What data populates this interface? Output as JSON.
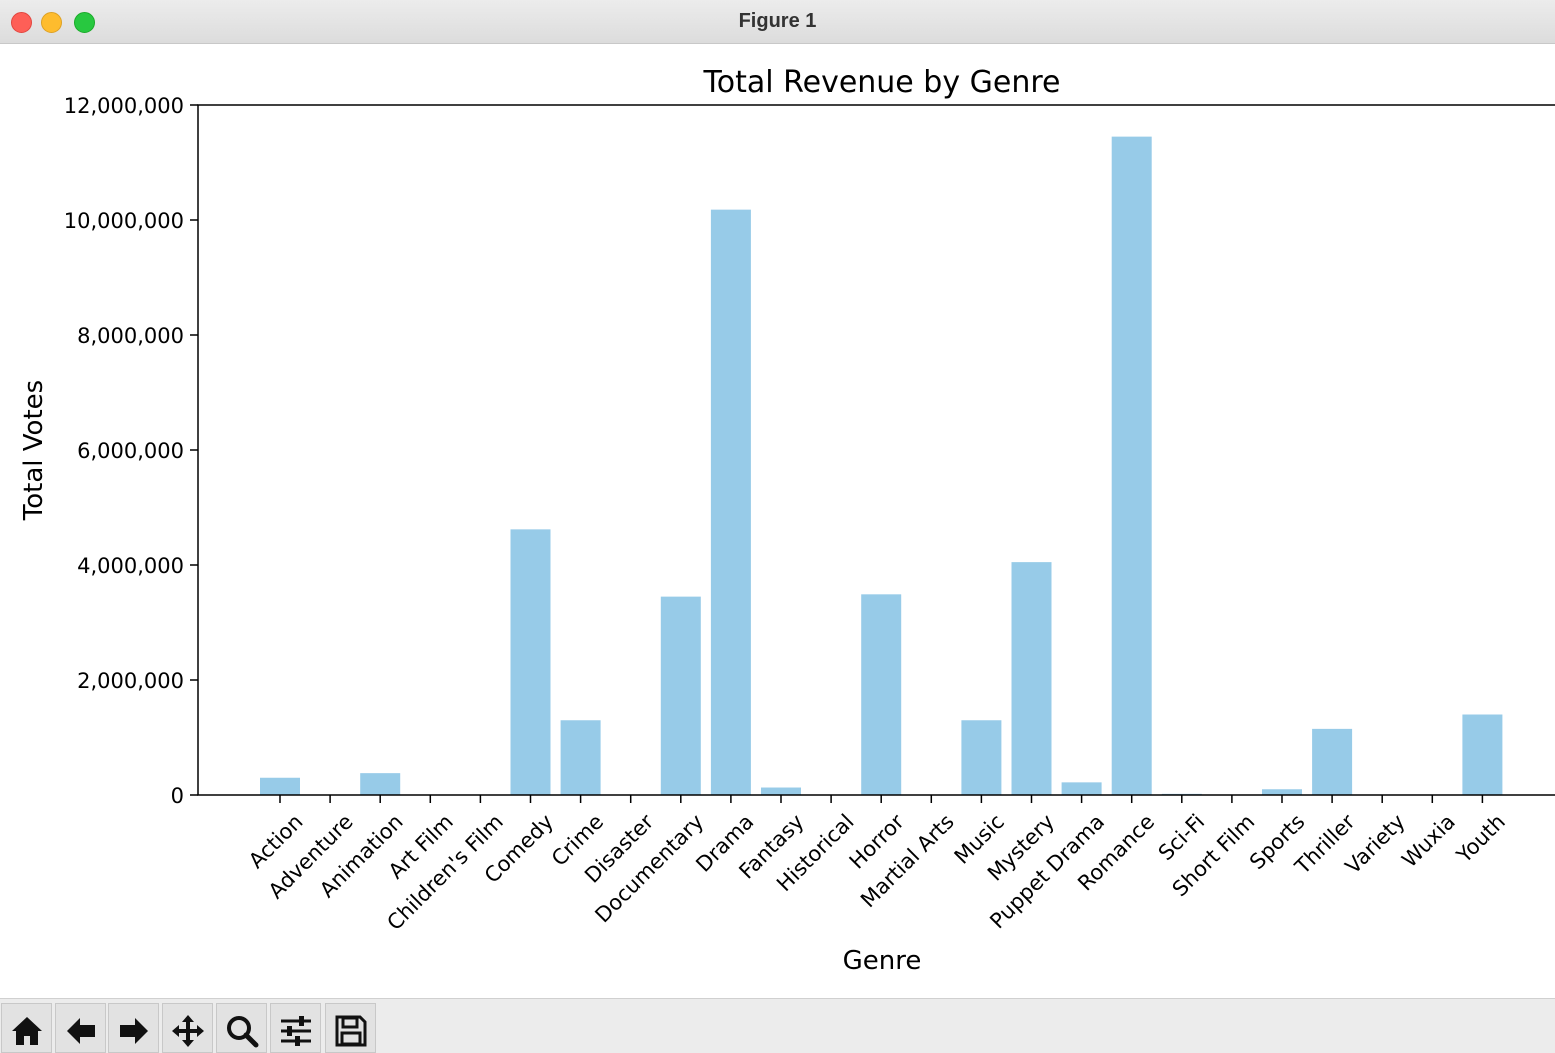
{
  "window": {
    "title": "Figure 1"
  },
  "toolbar": {
    "buttons": [
      {
        "name": "home-icon"
      },
      {
        "name": "back-arrow-icon"
      },
      {
        "name": "forward-arrow-icon"
      },
      {
        "name": "pan-icon"
      },
      {
        "name": "zoom-icon"
      },
      {
        "name": "configure-subplots-icon"
      },
      {
        "name": "save-icon"
      }
    ]
  },
  "chart_data": {
    "type": "bar",
    "title": "Total Revenue by Genre",
    "xlabel": "Genre",
    "ylabel": "Total Votes",
    "categories": [
      "Action",
      "Adventure",
      "Animation",
      "Art Film",
      "Children's Film",
      "Comedy",
      "Crime",
      "Disaster",
      "Documentary",
      "Drama",
      "Fantasy",
      "Historical",
      "Horror",
      "Martial Arts",
      "Music",
      "Mystery",
      "Puppet Drama",
      "Romance",
      "Sci-Fi",
      "Short Film",
      "Sports",
      "Thriller",
      "Variety",
      "Wuxia",
      "Youth"
    ],
    "values": [
      300000,
      0,
      380000,
      0,
      0,
      4620000,
      1300000,
      0,
      3450000,
      10180000,
      130000,
      0,
      3490000,
      0,
      1300000,
      4050000,
      220000,
      11450000,
      20000,
      0,
      100000,
      1150000,
      0,
      0,
      1400000
    ],
    "ylim": [
      0,
      12000000
    ],
    "yticks": [
      0,
      2000000,
      4000000,
      6000000,
      8000000,
      10000000,
      12000000
    ],
    "ytick_labels": [
      "0",
      "2,000,000",
      "4,000,000",
      "6,000,000",
      "8,000,000",
      "10,000,000",
      "12,000,000"
    ],
    "bar_color": "#97cbe8",
    "grid": false,
    "xtick_rotation": 45
  }
}
